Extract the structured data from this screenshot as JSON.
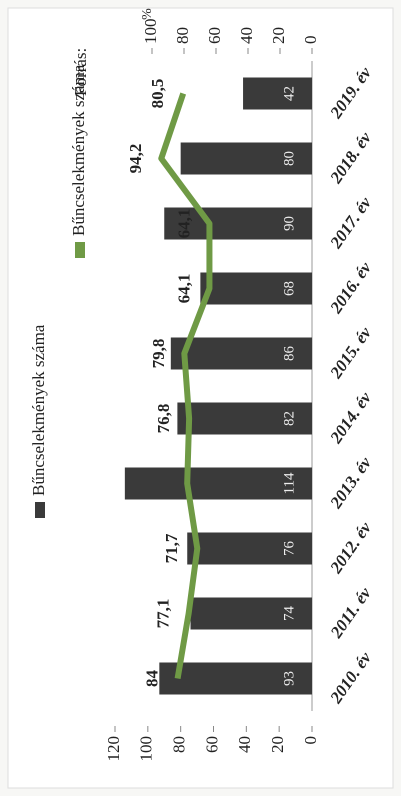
{
  "chart_data": {
    "type": "bar_line",
    "categories": [
      "2010. év",
      "2011. év",
      "2012. év",
      "2013. év",
      "2014. év",
      "2015. év",
      "2016. év",
      "2017. év",
      "2018. év",
      "2019. év"
    ],
    "series": [
      {
        "name": "Bűncselekmények száma",
        "type": "bar",
        "color": "#3a3a3a",
        "values": [
          93,
          74,
          76,
          114,
          82,
          86,
          68,
          90,
          80,
          42
        ]
      },
      {
        "name": "Bűncselekmények száma",
        "type": "line",
        "axis": "y2",
        "color": "#6f9a45",
        "values": [
          84,
          77.1,
          71.7,
          78,
          76.8,
          79.8,
          64.1,
          64.1,
          94.2,
          80.5
        ],
        "value_labels": [
          "84",
          "77,1",
          "71,7",
          null,
          "76,8",
          "79,8",
          "64,1",
          "64,1",
          "94,2",
          "80,5"
        ]
      }
    ],
    "ylim": [
      0,
      120
    ],
    "yticks": [
      0,
      20,
      40,
      60,
      80,
      100,
      120
    ],
    "y2lim": [
      0,
      100
    ],
    "y2ticks": [
      0,
      20,
      40,
      60,
      80,
      100
    ],
    "y2_unit": "%",
    "source_label": "Forrás:"
  }
}
